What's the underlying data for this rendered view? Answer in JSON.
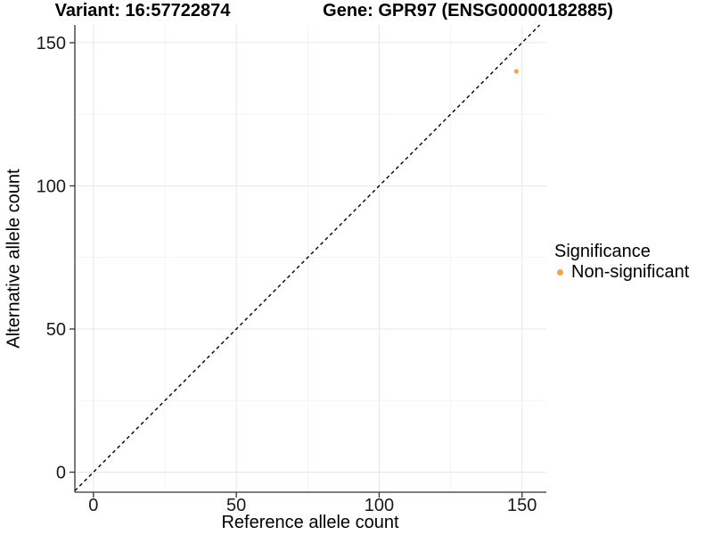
{
  "chart_data": {
    "type": "scatter",
    "titles": {
      "left": "Variant: 16:57722874",
      "right": "Gene: GPR97 (ENSG00000182885)"
    },
    "xlabel": "Reference allele count",
    "ylabel": "Alternative allele count",
    "xlim": [
      -6.5,
      158.5
    ],
    "ylim": [
      -7,
      156.2
    ],
    "x_ticks": [
      0,
      50,
      100,
      150
    ],
    "y_ticks": [
      0,
      50,
      100,
      150
    ],
    "x_minor_ticks": [
      25,
      75,
      125
    ],
    "y_minor_ticks": [
      25,
      75,
      125
    ],
    "grid": {
      "on": true,
      "major_color": "#E7E7E7",
      "minor_color": "#F4F4F4"
    },
    "axis": {
      "line_color": "#333333",
      "tick_color": "#333333",
      "tick_label_color": "#1A1A1A",
      "label_color": "#000000"
    },
    "identity_line": {
      "equation": "y = x",
      "style": "dashed",
      "color": "#000000"
    },
    "series": [
      {
        "name": "Non-significant",
        "color": "#F9A242",
        "point_radius": 2.6,
        "points": [
          {
            "x": 148,
            "y": 140
          }
        ]
      }
    ],
    "legend": {
      "title": "Significance",
      "position": "right",
      "entries": [
        {
          "label": "Non-significant",
          "color": "#F9A242",
          "marker": "circle"
        }
      ]
    }
  }
}
